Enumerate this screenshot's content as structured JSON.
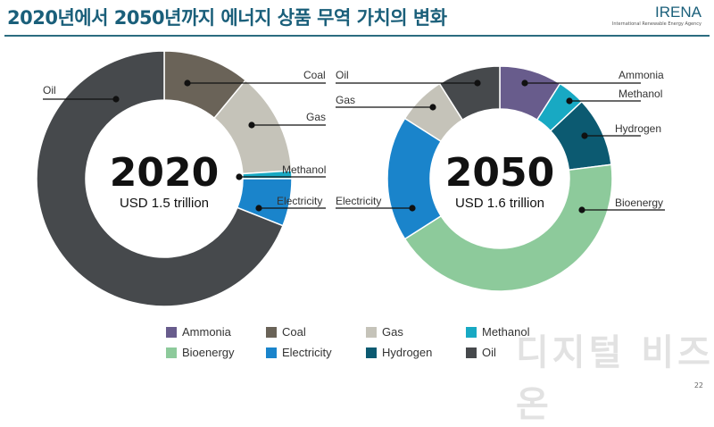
{
  "title": "2020년에서 2050년까지 에너지 상품 무역 가치의 변화",
  "logo": {
    "name": "IRENA",
    "sub": "International Renewable Energy Agency"
  },
  "page_number": "22",
  "watermark": "디지털 비즈온",
  "colors": {
    "Ammonia": "#685c8c",
    "Coal": "#6a6358",
    "Gas": "#c5c3b9",
    "Methanol": "#18a9c3",
    "Bioenergy": "#8dca9b",
    "Electricity": "#1a84cb",
    "Hydrogen": "#0c5a71",
    "Oil": "#46494c"
  },
  "chart_data": [
    {
      "type": "pie",
      "year": "2020",
      "total": "USD 1.5 trillion",
      "units": "percent of total (estimated)",
      "slices": [
        {
          "name": "Coal",
          "value": 11
        },
        {
          "name": "Gas",
          "value": 13
        },
        {
          "name": "Methanol",
          "value": 1
        },
        {
          "name": "Electricity",
          "value": 6
        },
        {
          "name": "Oil",
          "value": 69
        }
      ]
    },
    {
      "type": "pie",
      "year": "2050",
      "total": "USD 1.6 trillion",
      "units": "percent of total (estimated)",
      "slices": [
        {
          "name": "Ammonia",
          "value": 9
        },
        {
          "name": "Methanol",
          "value": 4
        },
        {
          "name": "Hydrogen",
          "value": 10
        },
        {
          "name": "Bioenergy",
          "value": 43
        },
        {
          "name": "Electricity",
          "value": 18
        },
        {
          "name": "Gas",
          "value": 7
        },
        {
          "name": "Oil",
          "value": 9
        }
      ]
    }
  ],
  "legend": [
    "Ammonia",
    "Coal",
    "Gas",
    "Methanol",
    "Bioenergy",
    "Electricity",
    "Hydrogen",
    "Oil"
  ]
}
